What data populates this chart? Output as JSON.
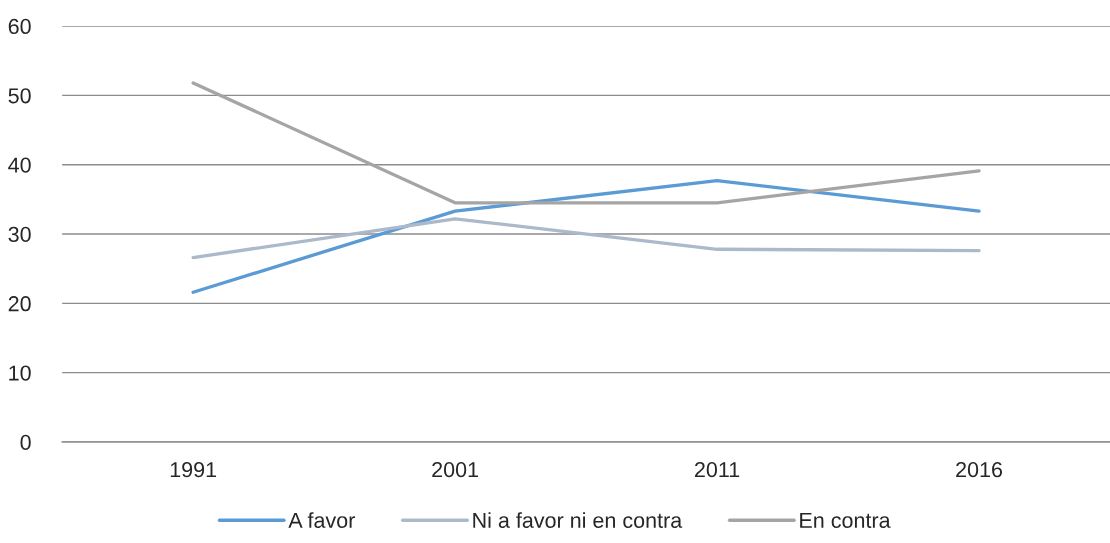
{
  "chart_data": {
    "type": "line",
    "categories": [
      "1991",
      "2001",
      "2011",
      "2016"
    ],
    "series": [
      {
        "name": "A favor",
        "color": "#5b9bd5",
        "values": [
          21.6,
          33.3,
          37.7,
          33.3
        ]
      },
      {
        "name": "Ni a favor ni en contra",
        "color": "#acb9ca",
        "values": [
          26.6,
          32.2,
          27.8,
          27.6
        ]
      },
      {
        "name": "En contra",
        "color": "#a5a5a5",
        "values": [
          51.8,
          34.5,
          34.5,
          39.1
        ]
      }
    ],
    "ylim": [
      0,
      60
    ],
    "yticks": [
      0,
      10,
      20,
      30,
      40,
      50,
      60
    ],
    "grid": "y",
    "legend": "bottom",
    "line_style": "solid"
  }
}
